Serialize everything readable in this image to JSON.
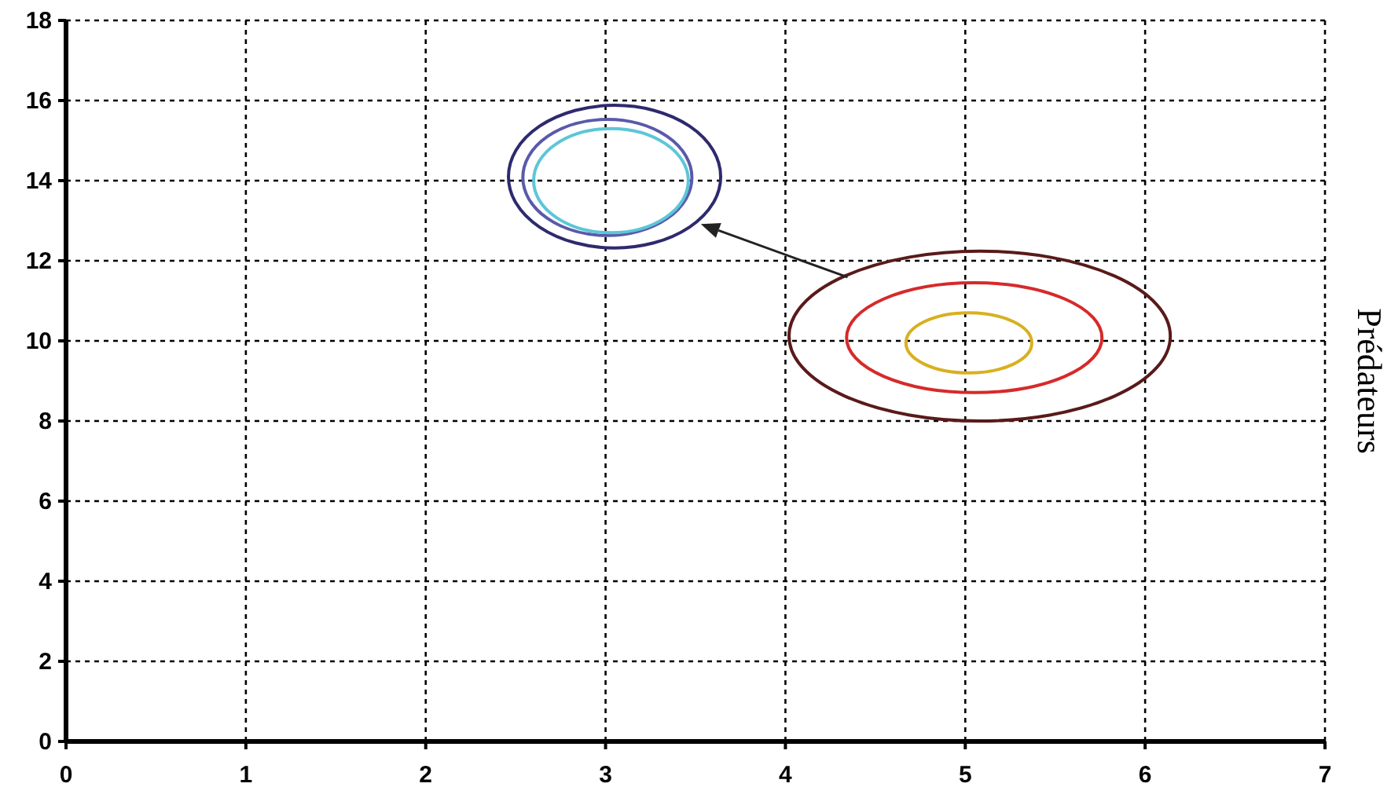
{
  "chart_data": {
    "type": "line",
    "ylabel": "Prédateurs",
    "xlim": [
      0,
      7
    ],
    "xticks": [
      0,
      1,
      2,
      3,
      4,
      5,
      6,
      7
    ],
    "ylim": [
      0,
      18
    ],
    "yticks": [
      0,
      2,
      4,
      6,
      8,
      10,
      12,
      14,
      16,
      18
    ],
    "grid": true
  }
}
